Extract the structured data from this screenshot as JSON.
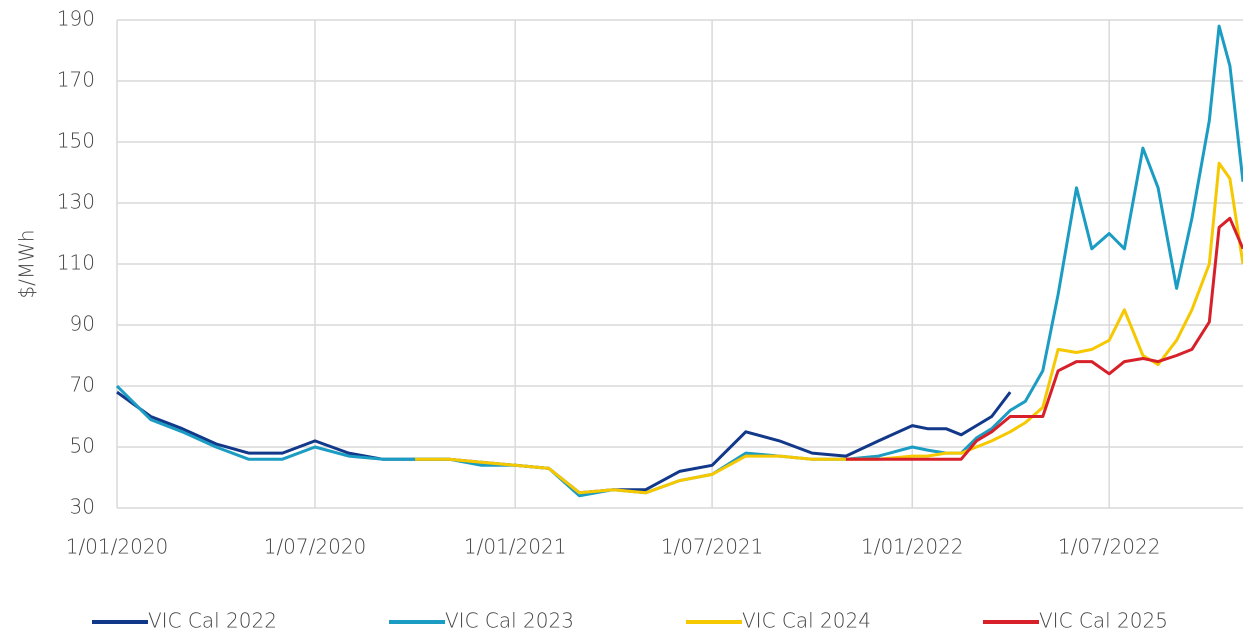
{
  "chart_data": {
    "type": "line",
    "y_label": "$/MWh",
    "x": [
      "2020-01-01",
      "2020-02-01",
      "2020-03-01",
      "2020-04-01",
      "2020-05-01",
      "2020-06-01",
      "2020-07-01",
      "2020-08-01",
      "2020-09-01",
      "2020-10-01",
      "2020-11-01",
      "2020-12-01",
      "2021-01-01",
      "2021-02-01",
      "2021-03-01",
      "2021-04-01",
      "2021-05-01",
      "2021-06-01",
      "2021-07-01",
      "2021-08-01",
      "2021-09-01",
      "2021-10-01",
      "2021-11-01",
      "2021-12-01",
      "2022-01-01",
      "2022-01-15",
      "2022-02-01",
      "2022-02-15",
      "2022-03-01",
      "2022-03-15",
      "2022-04-01",
      "2022-04-15",
      "2022-05-01",
      "2022-05-15",
      "2022-06-01",
      "2022-06-15",
      "2022-07-01",
      "2022-07-15",
      "2022-08-01",
      "2022-08-15",
      "2022-09-01",
      "2022-09-15",
      "2022-10-01",
      "2022-10-10",
      "2022-10-20",
      "2022-11-01"
    ],
    "series": [
      {
        "name": "VIC Cal 2022",
        "color": "#12388a",
        "values": [
          68,
          60,
          56,
          51,
          48,
          48,
          52,
          48,
          46,
          46,
          46,
          45,
          44,
          43,
          35,
          36,
          36,
          42,
          44,
          55,
          52,
          48,
          47,
          52,
          57,
          56,
          56,
          54,
          57,
          60,
          68,
          null,
          null,
          null,
          null,
          null,
          null,
          null,
          null,
          null,
          null,
          null,
          null,
          null,
          null,
          null
        ]
      },
      {
        "name": "VIC Cal 2023",
        "color": "#1b9cc2",
        "values": [
          70,
          59,
          55,
          50,
          46,
          46,
          50,
          47,
          46,
          46,
          46,
          44,
          44,
          43,
          34,
          36,
          35,
          39,
          41,
          48,
          47,
          46,
          46,
          47,
          50,
          49,
          48,
          48,
          53,
          56,
          62,
          65,
          75,
          100,
          135,
          115,
          120,
          115,
          148,
          135,
          102,
          125,
          157,
          188,
          175,
          137
        ]
      },
      {
        "name": "VIC Cal 2024",
        "color": "#f6c800",
        "values": [
          null,
          null,
          null,
          null,
          null,
          null,
          null,
          null,
          null,
          46,
          46,
          45,
          44,
          43,
          35,
          36,
          35,
          39,
          41,
          47,
          47,
          46,
          46,
          46,
          47,
          47,
          48,
          48,
          50,
          52,
          55,
          58,
          63,
          82,
          81,
          82,
          85,
          95,
          80,
          77,
          85,
          95,
          110,
          143,
          138,
          110
        ]
      },
      {
        "name": "VIC Cal 2025",
        "color": "#d7202a",
        "values": [
          null,
          null,
          null,
          null,
          null,
          null,
          null,
          null,
          null,
          null,
          null,
          null,
          null,
          null,
          null,
          null,
          null,
          null,
          null,
          null,
          null,
          null,
          46,
          46,
          46,
          46,
          46,
          46,
          52,
          55,
          60,
          60,
          60,
          75,
          78,
          78,
          74,
          78,
          79,
          78,
          80,
          82,
          91,
          122,
          125,
          115
        ]
      }
    ],
    "xlim": [
      "2020-01-01",
      "2022-11-01"
    ],
    "xticks": [
      {
        "value": "2020-01-01",
        "label": "1/01/2020"
      },
      {
        "value": "2020-07-01",
        "label": "1/07/2020"
      },
      {
        "value": "2021-01-01",
        "label": "1/01/2021"
      },
      {
        "value": "2021-07-01",
        "label": "1/07/2021"
      },
      {
        "value": "2022-01-01",
        "label": "1/01/2022"
      },
      {
        "value": "2022-07-01",
        "label": "1/07/2022"
      }
    ],
    "ylim": [
      30,
      190
    ],
    "yticks": [
      30,
      50,
      70,
      90,
      110,
      130,
      150,
      170,
      190
    ],
    "grid": true
  }
}
